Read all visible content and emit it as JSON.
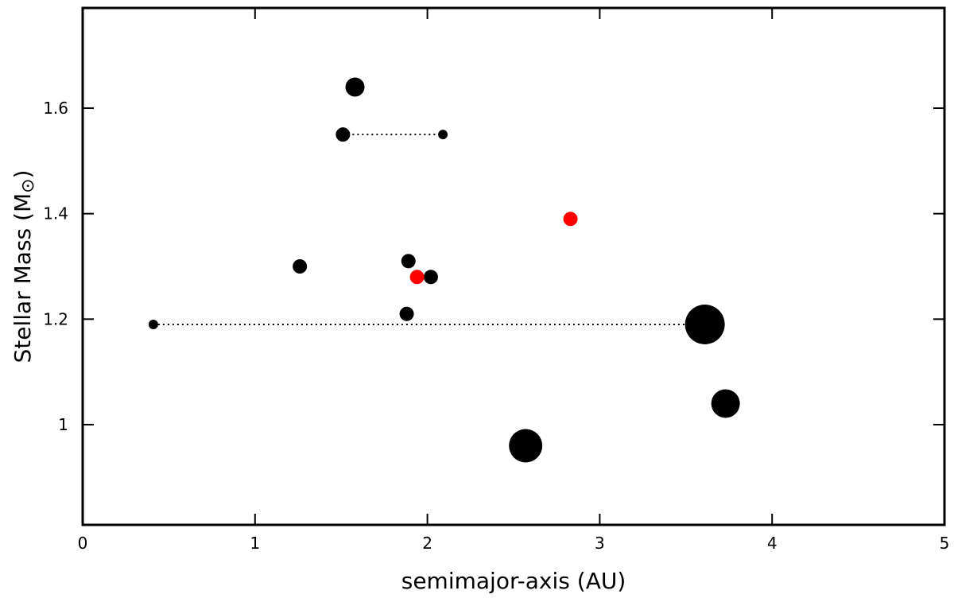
{
  "chart_data": {
    "type": "scatter",
    "title": "",
    "xlabel": "semimajor-axis (AU)",
    "ylabel": "Stellar Mass (M",
    "ylabel_symbol": "⊙",
    "ylabel_close": ")",
    "xlim": [
      0,
      5
    ],
    "ylim": [
      0.81,
      1.79
    ],
    "xticks": [
      0,
      1,
      2,
      3,
      4,
      5
    ],
    "xtick_labels": [
      "0",
      "1",
      "2",
      "3",
      "4",
      "5"
    ],
    "yticks": [
      1.0,
      1.2,
      1.4,
      1.6
    ],
    "ytick_labels": [
      "1",
      "1.2",
      "1.4",
      "1.6"
    ],
    "grid": false,
    "colors": {
      "black": "#000000",
      "red": "#ff0000"
    },
    "points": [
      {
        "x": 1.58,
        "y": 1.64,
        "size": "medium",
        "color": "black"
      },
      {
        "x": 1.51,
        "y": 1.55,
        "size": "small",
        "color": "black"
      },
      {
        "x": 2.09,
        "y": 1.55,
        "size": "tiny",
        "color": "black"
      },
      {
        "x": 2.83,
        "y": 1.39,
        "size": "small",
        "color": "red"
      },
      {
        "x": 1.26,
        "y": 1.3,
        "size": "small",
        "color": "black"
      },
      {
        "x": 1.89,
        "y": 1.31,
        "size": "small",
        "color": "black"
      },
      {
        "x": 2.02,
        "y": 1.28,
        "size": "small",
        "color": "black"
      },
      {
        "x": 1.94,
        "y": 1.28,
        "size": "small",
        "color": "red"
      },
      {
        "x": 1.88,
        "y": 1.21,
        "size": "small",
        "color": "black"
      },
      {
        "x": 0.41,
        "y": 1.19,
        "size": "tiny",
        "color": "black"
      },
      {
        "x": 3.61,
        "y": 1.19,
        "size": "xlarge",
        "color": "black"
      },
      {
        "x": 3.73,
        "y": 1.04,
        "size": "large",
        "color": "black"
      },
      {
        "x": 2.57,
        "y": 0.96,
        "size": "xlarge2",
        "color": "black"
      }
    ],
    "connectors": [
      {
        "x": [
          1.51,
          2.09
        ],
        "y": 1.55,
        "style": "dotted"
      },
      {
        "x": [
          0.41,
          3.61
        ],
        "y": 1.19,
        "style": "dotted"
      }
    ]
  }
}
